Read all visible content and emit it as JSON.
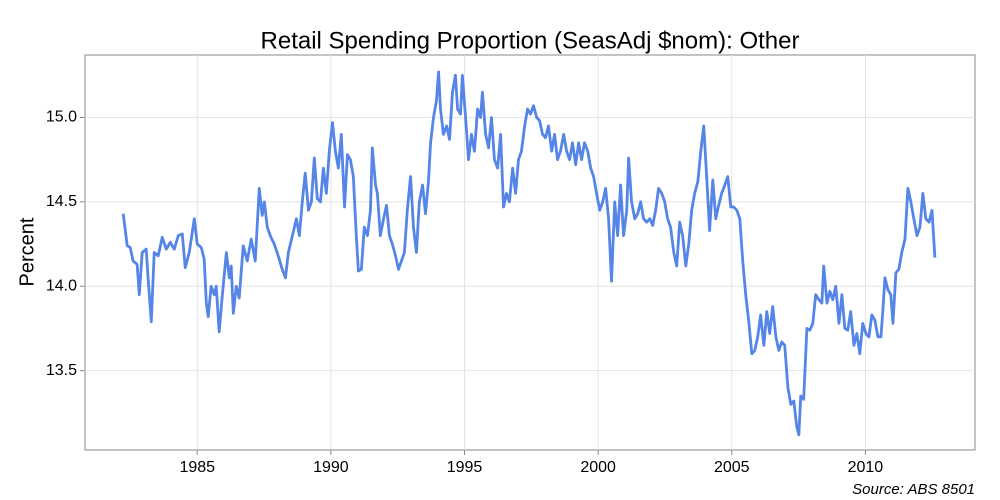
{
  "chart_data": {
    "type": "line",
    "title": "Retail Spending Proportion (SeasAdj $nom): Other",
    "y_label": "Percent",
    "caption": "Source: ABS 8501",
    "xlim": [
      1980.8,
      2014.1
    ],
    "xticks": [
      1985,
      1990,
      1995,
      2000,
      2005,
      2010
    ],
    "ylim": [
      13.03,
      15.37
    ],
    "yticks": [
      {
        "value": 13.5,
        "label": "13.5"
      },
      {
        "value": 14,
        "label": "14.0"
      },
      {
        "value": 14.5,
        "label": "14.5"
      },
      {
        "value": 15,
        "label": "15.0"
      }
    ],
    "grid": true,
    "x": [
      1982.23,
      1982.38,
      1982.49,
      1982.6,
      1982.75,
      1982.83,
      1982.94,
      1983.09,
      1983.16,
      1983.28,
      1983.39,
      1983.54,
      1983.69,
      1983.84,
      1983.99,
      1984.14,
      1984.29,
      1984.44,
      1984.55,
      1984.7,
      1984.89,
      1985.0,
      1985.15,
      1985.26,
      1985.34,
      1985.41,
      1985.52,
      1985.64,
      1985.71,
      1985.82,
      1985.94,
      1986.09,
      1986.2,
      1986.27,
      1986.35,
      1986.46,
      1986.57,
      1986.72,
      1986.87,
      1987.02,
      1987.17,
      1987.32,
      1987.43,
      1987.51,
      1987.62,
      1987.73,
      1987.88,
      1988.03,
      1988.18,
      1988.3,
      1988.41,
      1988.56,
      1988.71,
      1988.82,
      1988.93,
      1989.04,
      1989.16,
      1989.27,
      1989.38,
      1989.49,
      1989.61,
      1989.72,
      1989.83,
      1989.94,
      1990.06,
      1990.17,
      1990.28,
      1990.39,
      1990.51,
      1990.62,
      1990.73,
      1990.84,
      1990.95,
      1991.03,
      1991.14,
      1991.25,
      1991.37,
      1991.48,
      1991.55,
      1991.67,
      1991.74,
      1991.85,
      1991.97,
      1992.08,
      1992.19,
      1992.3,
      1992.42,
      1992.53,
      1992.64,
      1992.75,
      1992.86,
      1992.98,
      1993.09,
      1993.2,
      1993.31,
      1993.43,
      1993.54,
      1993.65,
      1993.73,
      1993.84,
      1993.95,
      1994.03,
      1994.1,
      1994.21,
      1994.33,
      1994.44,
      1994.55,
      1994.66,
      1994.74,
      1994.85,
      1994.92,
      1995.04,
      1995.15,
      1995.26,
      1995.37,
      1995.49,
      1995.6,
      1995.67,
      1995.79,
      1995.9,
      1996.01,
      1996.12,
      1996.24,
      1996.35,
      1996.46,
      1996.57,
      1996.68,
      1996.8,
      1996.91,
      1997.02,
      1997.13,
      1997.25,
      1997.36,
      1997.47,
      1997.58,
      1997.7,
      1997.81,
      1997.92,
      1998.03,
      1998.14,
      1998.26,
      1998.37,
      1998.48,
      1998.59,
      1998.71,
      1998.82,
      1998.93,
      1999.04,
      1999.16,
      1999.27,
      1999.38,
      1999.49,
      1999.61,
      1999.72,
      1999.83,
      1999.94,
      2000.06,
      2000.17,
      2000.28,
      2000.39,
      2000.5,
      2000.62,
      2000.73,
      2000.84,
      2000.95,
      2001.07,
      2001.14,
      2001.25,
      2001.37,
      2001.48,
      2001.59,
      2001.7,
      2001.82,
      2001.93,
      2002.04,
      2002.15,
      2002.26,
      2002.38,
      2002.49,
      2002.6,
      2002.71,
      2002.83,
      2002.94,
      2003.05,
      2003.16,
      2003.28,
      2003.39,
      2003.5,
      2003.61,
      2003.73,
      2003.84,
      2003.95,
      2004.06,
      2004.17,
      2004.29,
      2004.4,
      2004.51,
      2004.62,
      2004.74,
      2004.85,
      2004.96,
      2005.07,
      2005.19,
      2005.3,
      2005.41,
      2005.52,
      2005.63,
      2005.75,
      2005.86,
      2005.97,
      2006.08,
      2006.2,
      2006.31,
      2006.42,
      2006.53,
      2006.65,
      2006.76,
      2006.87,
      2006.98,
      2007.1,
      2007.21,
      2007.32,
      2007.43,
      2007.51,
      2007.58,
      2007.69,
      2007.81,
      2007.92,
      2008.03,
      2008.14,
      2008.26,
      2008.37,
      2008.44,
      2008.56,
      2008.67,
      2008.78,
      2008.89,
      2009.01,
      2009.12,
      2009.23,
      2009.34,
      2009.45,
      2009.57,
      2009.68,
      2009.79,
      2009.9,
      2010.02,
      2010.13,
      2010.24,
      2010.35,
      2010.47,
      2010.58,
      2010.65,
      2010.73,
      2010.84,
      2010.95,
      2011.03,
      2011.14,
      2011.25,
      2011.36,
      2011.48,
      2011.59,
      2011.7,
      2011.81,
      2011.93,
      2012.04,
      2012.15,
      2012.26,
      2012.38,
      2012.49,
      2012.6
    ],
    "series": [
      {
        "name": "Other",
        "color": "#5585e6",
        "values": [
          14.43,
          14.24,
          14.23,
          14.15,
          14.13,
          13.95,
          14.2,
          14.22,
          14.05,
          13.79,
          14.2,
          14.18,
          14.29,
          14.22,
          14.26,
          14.22,
          14.3,
          14.31,
          14.11,
          14.2,
          14.4,
          14.25,
          14.23,
          14.16,
          13.9,
          13.82,
          14.0,
          13.95,
          14.0,
          13.73,
          13.95,
          14.2,
          14.05,
          14.12,
          13.84,
          14.0,
          13.93,
          14.24,
          14.15,
          14.28,
          14.15,
          14.58,
          14.42,
          14.5,
          14.35,
          14.3,
          14.25,
          14.18,
          14.1,
          14.05,
          14.2,
          14.3,
          14.4,
          14.3,
          14.5,
          14.67,
          14.45,
          14.5,
          14.76,
          14.52,
          14.5,
          14.7,
          14.55,
          14.8,
          14.97,
          14.8,
          14.7,
          14.9,
          14.47,
          14.78,
          14.75,
          14.65,
          14.3,
          14.09,
          14.1,
          14.35,
          14.3,
          14.45,
          14.82,
          14.6,
          14.55,
          14.3,
          14.4,
          14.48,
          14.3,
          14.25,
          14.18,
          14.1,
          14.15,
          14.2,
          14.45,
          14.65,
          14.35,
          14.2,
          14.5,
          14.6,
          14.43,
          14.62,
          14.85,
          15.0,
          15.1,
          15.27,
          15.05,
          14.9,
          14.95,
          14.87,
          15.15,
          15.25,
          15.05,
          15.02,
          15.25,
          15.0,
          14.75,
          14.9,
          14.8,
          15.05,
          15.0,
          15.15,
          14.9,
          14.82,
          15.0,
          14.75,
          14.7,
          14.9,
          14.47,
          14.55,
          14.5,
          14.7,
          14.55,
          14.75,
          14.8,
          14.95,
          15.05,
          15.02,
          15.07,
          15.0,
          14.98,
          14.9,
          14.88,
          14.95,
          14.8,
          14.9,
          14.75,
          14.8,
          14.9,
          14.8,
          14.75,
          14.85,
          14.72,
          14.85,
          14.75,
          14.85,
          14.8,
          14.7,
          14.65,
          14.55,
          14.45,
          14.5,
          14.58,
          14.4,
          14.03,
          14.5,
          14.3,
          14.6,
          14.3,
          14.45,
          14.76,
          14.5,
          14.4,
          14.43,
          14.5,
          14.4,
          14.38,
          14.4,
          14.36,
          14.45,
          14.58,
          14.55,
          14.5,
          14.4,
          14.35,
          14.2,
          14.12,
          14.38,
          14.3,
          14.12,
          14.25,
          14.45,
          14.55,
          14.62,
          14.8,
          14.95,
          14.65,
          14.33,
          14.63,
          14.4,
          14.48,
          14.55,
          14.6,
          14.65,
          14.47,
          14.47,
          14.45,
          14.4,
          14.15,
          13.95,
          13.8,
          13.6,
          13.62,
          13.7,
          13.83,
          13.65,
          13.85,
          13.72,
          13.88,
          13.7,
          13.62,
          13.67,
          13.65,
          13.4,
          13.3,
          13.32,
          13.17,
          13.12,
          13.35,
          13.33,
          13.75,
          13.74,
          13.78,
          13.95,
          13.92,
          13.9,
          14.12,
          13.9,
          13.97,
          13.92,
          14.0,
          13.78,
          13.95,
          13.75,
          13.74,
          13.85,
          13.65,
          13.72,
          13.6,
          13.78,
          13.72,
          13.7,
          13.83,
          13.8,
          13.7,
          13.7,
          13.85,
          14.05,
          13.98,
          13.95,
          13.78,
          14.08,
          14.1,
          14.2,
          14.28,
          14.58,
          14.5,
          14.4,
          14.3,
          14.35,
          14.55,
          14.4,
          14.38,
          14.45,
          14.17
        ]
      }
    ]
  }
}
